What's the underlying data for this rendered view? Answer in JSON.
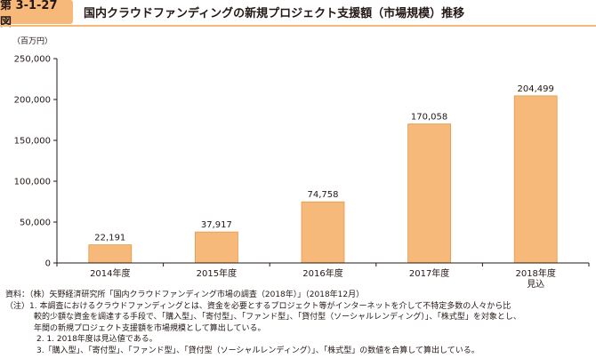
{
  "header": {
    "figure_label": "第 3-1-27 図",
    "title": "国内クラウドファンディングの新規プロジェクト支援額（市場規模）推移"
  },
  "chart_data": {
    "type": "bar",
    "unit_label": "（百万円）",
    "categories": [
      "2014年度",
      "2015年度",
      "2016年度",
      "2017年度",
      "2018年度"
    ],
    "category_sublabels": [
      "",
      "",
      "",
      "",
      "見込"
    ],
    "values": [
      22191,
      37917,
      74758,
      170058,
      204499
    ],
    "value_labels": [
      "22,191",
      "37,917",
      "74,758",
      "170,058",
      "204,499"
    ],
    "y_ticks": [
      0,
      50000,
      100000,
      150000,
      200000,
      250000
    ],
    "y_tick_labels": [
      "0",
      "50,000",
      "100,000",
      "150,000",
      "200,000",
      "250,000"
    ],
    "ylim": [
      0,
      250000
    ],
    "grid": false,
    "bar_color": "#f6b97a",
    "bar_border_color": "#e39a4e"
  },
  "notes": {
    "source": "資料：（株）矢野経済研究所「国内クラウドファンディング市場の調査（2018年）」（2018年12月）",
    "note1_line1": "（注）1. 本調査におけるクラウドファンディングとは、資金を必要とするプロジェクト等がインターネットを介して不特定多数の人々から比",
    "note1_line2": "較的少額な資金を調達する手段で、「購入型」、「寄付型」、「ファンド型」、「貸付型（ソーシャルレンディング）」、「株式型」を対象とし、",
    "note1_line3": "年間の新規プロジェクト支援額を市場規模として算出している。",
    "note2": "2. 1. 2018年度は見込値である。",
    "note3": "3.「購入型」、「寄付型」、「ファンド型」、「貸付型（ソーシャルレンディング）」、「株式型」の数値を合算して算出している。"
  }
}
